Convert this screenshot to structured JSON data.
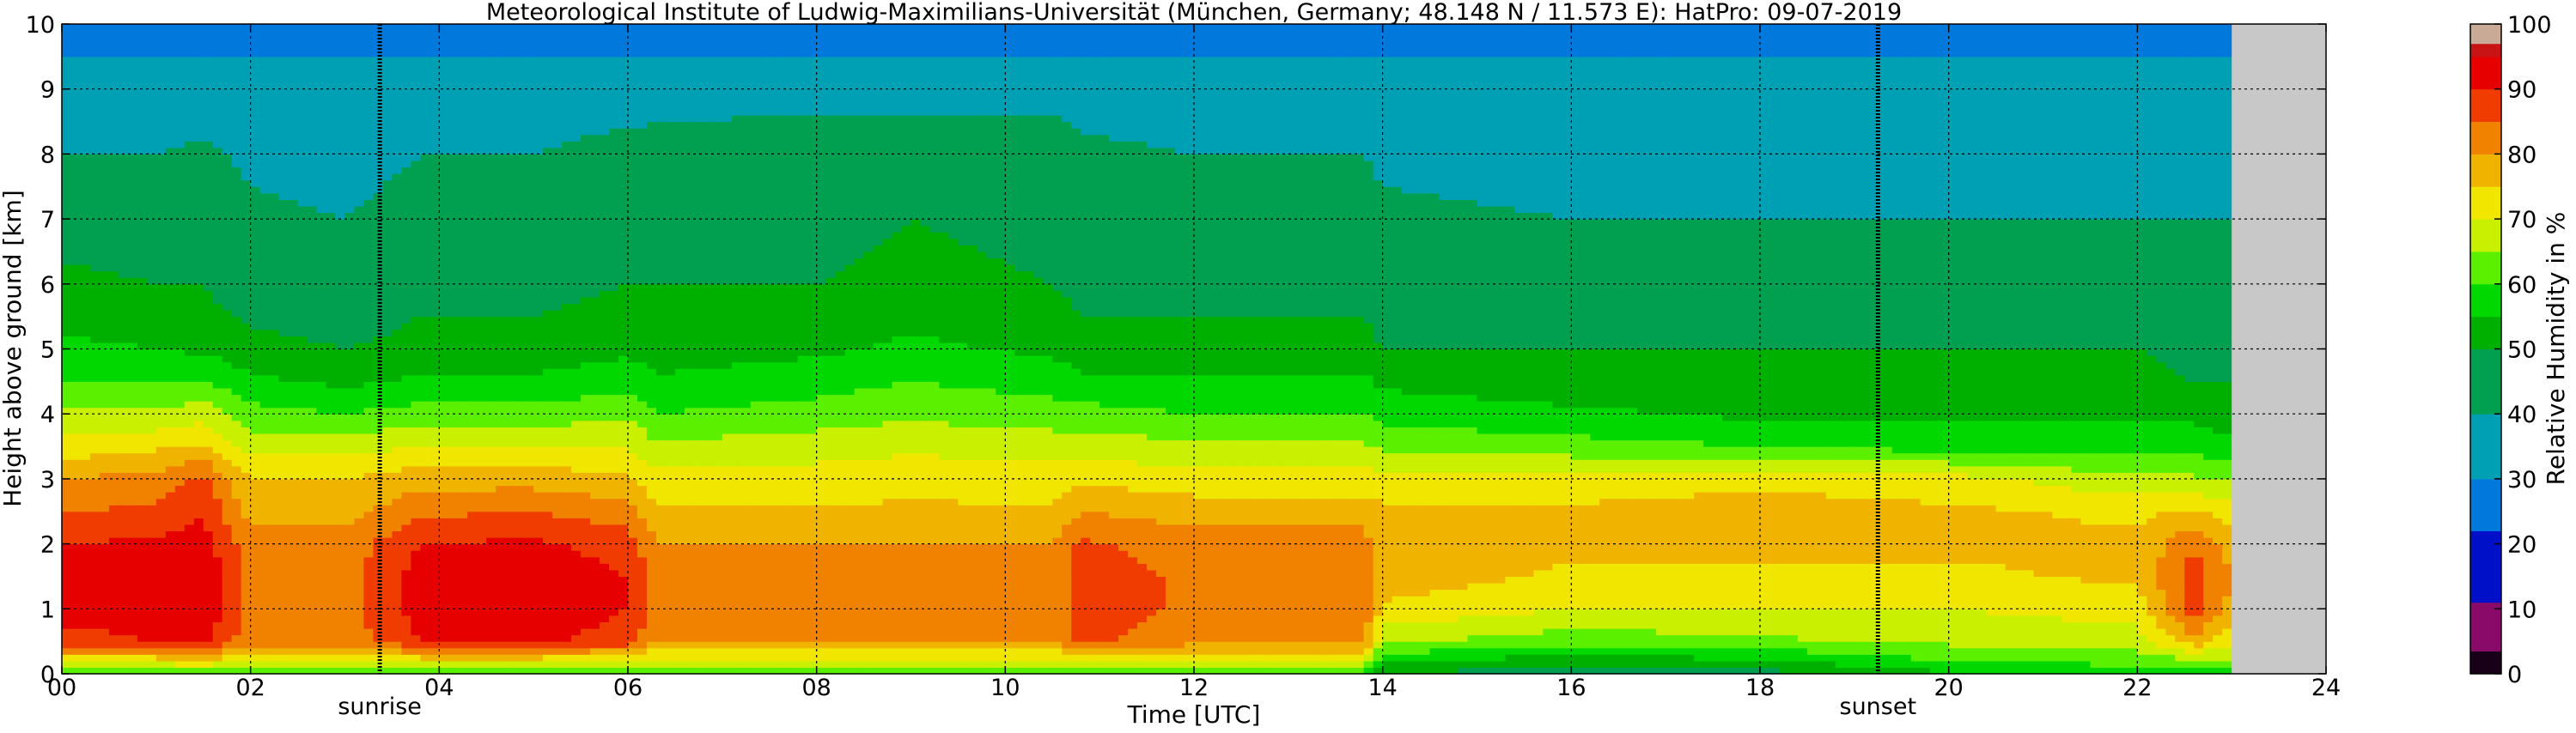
{
  "chart_data": {
    "type": "heatmap",
    "title": "Meteorological Institute of Ludwig-Maximilians-Universität (München, Germany; 48.148 N / 11.573 E):    HatPro: 09-07-2019",
    "xlabel": "Time [UTC]",
    "ylabel": "Height above ground [km]",
    "xlim": [
      0,
      24
    ],
    "ylim": [
      0,
      10
    ],
    "x_ticks": [
      "00",
      "02",
      "04",
      "06",
      "08",
      "10",
      "12",
      "14",
      "16",
      "18",
      "20",
      "22",
      "24"
    ],
    "y_ticks": [
      "0",
      "1",
      "2",
      "3",
      "4",
      "5",
      "6",
      "7",
      "8",
      "9",
      "10"
    ],
    "grid": true,
    "data_end_hour": 23.0,
    "no_data_color": "#c8c8c8",
    "colorbar": {
      "label": "Relative Humidity in %",
      "range": [
        0,
        100
      ],
      "ticks": [
        "0",
        "10",
        "20",
        "30",
        "40",
        "50",
        "60",
        "70",
        "80",
        "90",
        "100"
      ],
      "bands": [
        {
          "from": 0,
          "to": 3.5,
          "color": "#180018"
        },
        {
          "from": 3.5,
          "to": 11,
          "color": "#8a0a6a"
        },
        {
          "from": 11,
          "to": 22,
          "color": "#0010c8"
        },
        {
          "from": 22,
          "to": 30,
          "color": "#0078dc"
        },
        {
          "from": 30,
          "to": 40,
          "color": "#00a0b4"
        },
        {
          "from": 40,
          "to": 50,
          "color": "#00a050"
        },
        {
          "from": 50,
          "to": 55,
          "color": "#00b000"
        },
        {
          "from": 55,
          "to": 60,
          "color": "#00d800"
        },
        {
          "from": 60,
          "to": 65,
          "color": "#5af000"
        },
        {
          "from": 65,
          "to": 70,
          "color": "#c8f000"
        },
        {
          "from": 70,
          "to": 75,
          "color": "#f0e600"
        },
        {
          "from": 75,
          "to": 80,
          "color": "#f0b400"
        },
        {
          "from": 80,
          "to": 85,
          "color": "#f08200"
        },
        {
          "from": 85,
          "to": 90,
          "color": "#f03c00"
        },
        {
          "from": 90,
          "to": 95,
          "color": "#e60000"
        },
        {
          "from": 95,
          "to": 97,
          "color": "#c81414"
        },
        {
          "from": 97,
          "to": 100,
          "color": "#c8aa96"
        }
      ]
    },
    "profile_heights_km": [
      0.0,
      0.2,
      0.5,
      1.0,
      1.5,
      2.0,
      2.5,
      3.0,
      3.5,
      4.0,
      4.5,
      5.0,
      6.0,
      7.0,
      8.0,
      9.0,
      9.5,
      10.0
    ],
    "profiles": [
      {
        "hour": 0.0,
        "rh": [
          62,
          72,
          88,
          92,
          92,
          90,
          85,
          80,
          72,
          66,
          60,
          56,
          52,
          46,
          40,
          34,
          30,
          28
        ]
      },
      {
        "hour": 1.0,
        "rh": [
          62,
          72,
          90,
          93,
          93,
          91,
          86,
          82,
          74,
          66,
          60,
          55,
          50,
          46,
          40,
          34,
          30,
          28
        ]
      },
      {
        "hour": 1.5,
        "rh": [
          62,
          74,
          91,
          94,
          94,
          92,
          90,
          86,
          76,
          68,
          60,
          54,
          50,
          48,
          42,
          34,
          30,
          28
        ]
      },
      {
        "hour": 2.0,
        "rh": [
          60,
          70,
          82,
          84,
          84,
          82,
          78,
          75,
          68,
          62,
          56,
          52,
          46,
          42,
          38,
          34,
          30,
          28
        ]
      },
      {
        "hour": 3.0,
        "rh": [
          60,
          70,
          82,
          83,
          83,
          82,
          78,
          75,
          68,
          60,
          54,
          50,
          44,
          40,
          36,
          32,
          30,
          28
        ]
      },
      {
        "hour": 3.8,
        "rh": [
          60,
          72,
          90,
          92,
          92,
          90,
          84,
          78,
          70,
          62,
          56,
          52,
          48,
          44,
          40,
          34,
          30,
          28
        ]
      },
      {
        "hour": 5.0,
        "rh": [
          60,
          72,
          91,
          93,
          93,
          91,
          85,
          78,
          70,
          62,
          56,
          52,
          48,
          46,
          40,
          34,
          30,
          28
        ]
      },
      {
        "hour": 6.0,
        "rh": [
          60,
          70,
          88,
          90,
          90,
          88,
          82,
          76,
          70,
          64,
          58,
          54,
          50,
          48,
          44,
          34,
          30,
          28
        ]
      },
      {
        "hour": 6.3,
        "rh": [
          58,
          68,
          80,
          82,
          82,
          80,
          76,
          72,
          66,
          60,
          56,
          52,
          50,
          48,
          44,
          36,
          30,
          28
        ]
      },
      {
        "hour": 8.0,
        "rh": [
          58,
          68,
          80,
          82,
          82,
          80,
          76,
          72,
          68,
          62,
          58,
          54,
          50,
          48,
          46,
          36,
          30,
          28
        ]
      },
      {
        "hour": 9.0,
        "rh": [
          58,
          68,
          80,
          82,
          82,
          80,
          76,
          73,
          69,
          64,
          60,
          56,
          52,
          50,
          46,
          36,
          30,
          28
        ]
      },
      {
        "hour": 10.5,
        "rh": [
          58,
          68,
          80,
          82,
          82,
          80,
          76,
          72,
          68,
          62,
          58,
          54,
          50,
          48,
          46,
          36,
          30,
          28
        ]
      },
      {
        "hour": 10.8,
        "rh": [
          58,
          68,
          86,
          88,
          88,
          86,
          80,
          74,
          68,
          62,
          56,
          52,
          48,
          46,
          42,
          36,
          30,
          28
        ]
      },
      {
        "hour": 12.0,
        "rh": [
          58,
          68,
          82,
          84,
          84,
          82,
          78,
          72,
          66,
          60,
          56,
          52,
          48,
          44,
          40,
          34,
          30,
          28
        ]
      },
      {
        "hour": 13.8,
        "rh": [
          58,
          68,
          82,
          84,
          84,
          82,
          78,
          72,
          66,
          60,
          56,
          52,
          48,
          44,
          40,
          34,
          30,
          28
        ]
      },
      {
        "hour": 14.0,
        "rh": [
          50,
          56,
          66,
          74,
          78,
          78,
          76,
          72,
          64,
          58,
          54,
          50,
          46,
          42,
          38,
          34,
          30,
          28
        ]
      },
      {
        "hour": 16.0,
        "rh": [
          46,
          52,
          62,
          70,
          74,
          76,
          76,
          72,
          62,
          56,
          52,
          50,
          46,
          40,
          36,
          34,
          30,
          28
        ]
      },
      {
        "hour": 18.0,
        "rh": [
          48,
          54,
          64,
          70,
          74,
          76,
          77,
          74,
          60,
          54,
          52,
          50,
          46,
          40,
          36,
          34,
          30,
          28
        ]
      },
      {
        "hour": 20.0,
        "rh": [
          54,
          60,
          66,
          70,
          74,
          76,
          76,
          72,
          58,
          54,
          52,
          50,
          46,
          40,
          36,
          34,
          30,
          28
        ]
      },
      {
        "hour": 22.0,
        "rh": [
          56,
          62,
          68,
          72,
          76,
          76,
          74,
          66,
          58,
          54,
          52,
          50,
          46,
          40,
          36,
          34,
          30,
          28
        ]
      },
      {
        "hour": 22.6,
        "rh": [
          58,
          64,
          78,
          88,
          88,
          84,
          76,
          66,
          58,
          54,
          50,
          48,
          44,
          40,
          36,
          34,
          30,
          28
        ]
      },
      {
        "hour": 23.0,
        "rh": [
          58,
          64,
          72,
          78,
          80,
          78,
          72,
          64,
          56,
          52,
          50,
          48,
          44,
          40,
          36,
          34,
          30,
          28
        ]
      }
    ],
    "events": [
      {
        "label": "sunrise",
        "hour": 3.37
      },
      {
        "label": "sunset",
        "hour": 19.25
      }
    ]
  }
}
